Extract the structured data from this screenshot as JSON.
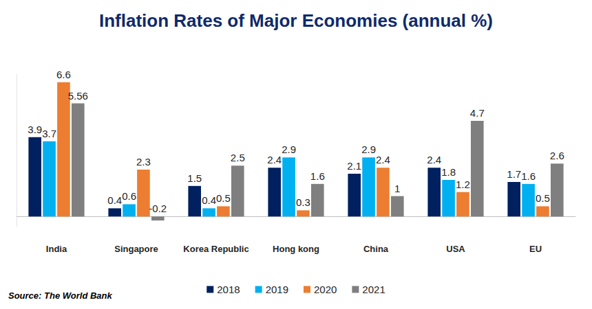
{
  "chart_data": {
    "type": "bar",
    "title": "Inflation Rates of Major Economies (annual %)",
    "annotation": "Source: The World Bank",
    "categories": [
      "India",
      "Singapore",
      "Korea Republic",
      "Hong kong",
      "China",
      "USA",
      "EU"
    ],
    "series": [
      {
        "name": "2018",
        "color": "#002060",
        "values": [
          3.9,
          0.4,
          1.5,
          2.4,
          2.1,
          2.4,
          1.7
        ]
      },
      {
        "name": "2019",
        "color": "#00b0f0",
        "values": [
          3.7,
          0.6,
          0.4,
          2.9,
          2.9,
          1.8,
          1.6
        ]
      },
      {
        "name": "2020",
        "color": "#ed7d31",
        "values": [
          6.6,
          2.3,
          0.5,
          0.3,
          2.4,
          1.2,
          0.5
        ]
      },
      {
        "name": "2021",
        "color": "#7f7f7f",
        "values": [
          5.56,
          -0.2,
          2.5,
          1.6,
          1,
          4.7,
          2.6
        ]
      }
    ],
    "ylim": [
      -0.5,
      7
    ],
    "grid": false,
    "legend": "bottom",
    "data_labels": true,
    "tick_labels": "x"
  }
}
